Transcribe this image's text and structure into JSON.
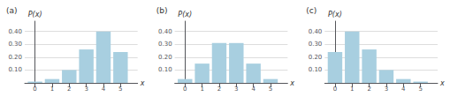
{
  "chart_data": [
    {
      "type": "bar",
      "title": "(a)",
      "xlabel": "x",
      "ylabel": "P(x)",
      "x": [
        0,
        1,
        2,
        3,
        4,
        5
      ],
      "values": [
        0.01,
        0.03,
        0.1,
        0.26,
        0.4,
        0.24
      ],
      "color": "#a8cfe0",
      "xlim": [
        -0.6,
        6.0
      ],
      "xticks": [
        0,
        1,
        2,
        3,
        4,
        5
      ],
      "ylim": [
        0,
        0.48
      ],
      "yticks": [
        {
          "value": 0.1,
          "label": "0.10"
        },
        {
          "value": 0.2,
          "label": "0.20"
        },
        {
          "value": 0.3,
          "label": "0.30"
        },
        {
          "value": 0.4,
          "label": "0.40"
        }
      ],
      "grid": true
    },
    {
      "type": "bar",
      "title": "(b)",
      "xlabel": "x",
      "ylabel": "P(x)",
      "x": [
        0,
        1,
        2,
        3,
        4,
        5
      ],
      "values": [
        0.03,
        0.15,
        0.31,
        0.31,
        0.15,
        0.03
      ],
      "color": "#a8cfe0",
      "xlim": [
        -0.6,
        6.0
      ],
      "xticks": [
        0,
        1,
        2,
        3,
        4,
        5
      ],
      "ylim": [
        0,
        0.48
      ],
      "yticks": [
        {
          "value": 0.1,
          "label": "0.10"
        },
        {
          "value": 0.2,
          "label": "0.20"
        },
        {
          "value": 0.3,
          "label": "0.30"
        },
        {
          "value": 0.4,
          "label": "0.40"
        }
      ],
      "grid": true
    },
    {
      "type": "bar",
      "title": "(c)",
      "xlabel": "x",
      "ylabel": "P(x)",
      "x": [
        0,
        1,
        2,
        3,
        4,
        5
      ],
      "values": [
        0.24,
        0.4,
        0.26,
        0.1,
        0.03,
        0.01
      ],
      "color": "#a8cfe0",
      "xlim": [
        -0.6,
        6.0
      ],
      "xticks": [
        0,
        1,
        2,
        3,
        4,
        5
      ],
      "ylim": [
        0,
        0.48
      ],
      "yticks": [
        {
          "value": 0.1,
          "label": "0.10"
        },
        {
          "value": 0.2,
          "label": "0.20"
        },
        {
          "value": 0.3,
          "label": "0.30"
        },
        {
          "value": 0.4,
          "label": "0.40"
        }
      ],
      "grid": true
    }
  ]
}
